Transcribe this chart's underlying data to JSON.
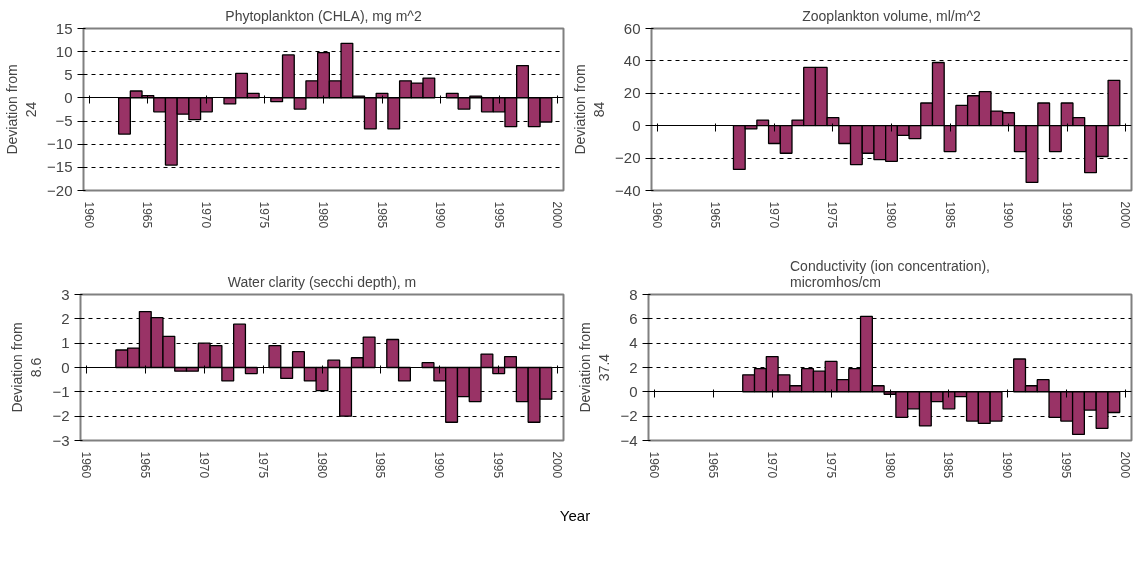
{
  "chart_data": [
    {
      "type": "bar",
      "title": "Phytoplankton (CHLA), mg m^2",
      "ylabel": "Deviation from 24",
      "color": "#993366",
      "grid": "y",
      "xlim": [
        1959.5,
        2000.5
      ],
      "xticks": [
        1960,
        1965,
        1970,
        1975,
        1980,
        1985,
        1990,
        1995,
        2000
      ],
      "ylim": [
        -20,
        15
      ],
      "yticks": [
        -20,
        -15,
        -10,
        -5,
        0,
        5,
        10,
        15
      ],
      "x": [
        1963,
        1964,
        1965,
        1966,
        1967,
        1968,
        1969,
        1970,
        1971,
        1972,
        1973,
        1974,
        1975,
        1976,
        1977,
        1978,
        1979,
        1980,
        1981,
        1982,
        1983,
        1984,
        1985,
        1986,
        1987,
        1988,
        1989,
        1990,
        1991,
        1992,
        1993,
        1994,
        1995,
        1996,
        1997,
        1998,
        1999
      ],
      "values": [
        -7.8,
        1.5,
        0.5,
        -3,
        -14.5,
        -3.5,
        -4.7,
        -3,
        null,
        -1.3,
        5.3,
        1,
        null,
        -0.8,
        9.3,
        -2.4,
        3.7,
        9.8,
        3.7,
        11.8,
        0.4,
        -6.7,
        1,
        -6.7,
        3.7,
        3.2,
        4.3,
        null,
        1,
        -2.4,
        0.4,
        -3,
        -3,
        -6.2,
        7,
        -6.2,
        -5.2
      ]
    },
    {
      "type": "bar",
      "title": "Zooplankton volume, ml/m^2",
      "ylabel": "Deviation from 84",
      "color": "#993366",
      "grid": "y",
      "xlim": [
        1959.5,
        2000.5
      ],
      "xticks": [
        1960,
        1965,
        1970,
        1975,
        1980,
        1985,
        1990,
        1995,
        2000
      ],
      "ylim": [
        -40,
        60
      ],
      "yticks": [
        -40,
        -20,
        0,
        20,
        40,
        60
      ],
      "x": [
        1967,
        1968,
        1969,
        1970,
        1971,
        1972,
        1973,
        1974,
        1975,
        1976,
        1977,
        1978,
        1979,
        1980,
        1981,
        1982,
        1983,
        1984,
        1985,
        1986,
        1987,
        1988,
        1989,
        1990,
        1991,
        1992,
        1993,
        1994,
        1995,
        1996,
        1997,
        1998,
        1999
      ],
      "values": [
        -27,
        -2,
        3.5,
        -11,
        -17,
        3.5,
        36,
        36,
        5,
        -11,
        -24,
        -17,
        -21,
        -22,
        -6,
        -8,
        14,
        39,
        -16,
        12.5,
        18.5,
        21,
        9,
        8,
        -16,
        -35,
        14,
        -16,
        14,
        5,
        -29,
        -19,
        28
      ]
    },
    {
      "type": "bar",
      "title": "Water clarity (secchi depth), m",
      "ylabel": "Deviation from 8.6",
      "color": "#993366",
      "grid": "y",
      "xlim": [
        1959.5,
        2000.5
      ],
      "xticks": [
        1960,
        1965,
        1970,
        1975,
        1980,
        1985,
        1990,
        1995,
        2000
      ],
      "ylim": [
        -3,
        3
      ],
      "yticks": [
        -3,
        -2,
        -1,
        0,
        1,
        2,
        3
      ],
      "x": [
        1963,
        1964,
        1965,
        1966,
        1967,
        1968,
        1969,
        1970,
        1971,
        1972,
        1973,
        1974,
        1975,
        1976,
        1977,
        1978,
        1979,
        1980,
        1981,
        1982,
        1983,
        1984,
        1985,
        1986,
        1987,
        1988,
        1989,
        1990,
        1991,
        1992,
        1993,
        1994,
        1995,
        1996,
        1997,
        1998,
        1999
      ],
      "values": [
        0.72,
        0.8,
        2.3,
        2.05,
        1.28,
        -0.15,
        -0.15,
        1.0,
        0.9,
        -0.55,
        1.78,
        -0.25,
        null,
        0.9,
        -0.45,
        0.65,
        -0.55,
        -0.95,
        0.3,
        -2.0,
        0.4,
        1.25,
        null,
        1.15,
        -0.55,
        null,
        0.2,
        -0.55,
        -2.25,
        -1.2,
        -1.4,
        0.55,
        -0.25,
        0.45,
        -1.4,
        -2.25,
        -1.3
      ]
    },
    {
      "type": "bar",
      "title": "Conductivity (ion concentration), micromhos/cm",
      "ylabel": "Deviation from 37.4",
      "color": "#993366",
      "grid": "y",
      "xlim": [
        1959.5,
        2000.5
      ],
      "xticks": [
        1960,
        1965,
        1970,
        1975,
        1980,
        1985,
        1990,
        1995,
        2000
      ],
      "ylim": [
        -4,
        8
      ],
      "yticks": [
        -4,
        -2,
        0,
        2,
        4,
        6,
        8
      ],
      "x": [
        1968,
        1969,
        1970,
        1971,
        1972,
        1973,
        1974,
        1975,
        1976,
        1977,
        1978,
        1979,
        1980,
        1981,
        1982,
        1983,
        1984,
        1985,
        1986,
        1987,
        1988,
        1989,
        1990,
        1991,
        1992,
        1993,
        1994,
        1995,
        1996,
        1997,
        1998,
        1999
      ],
      "values": [
        1.4,
        1.9,
        2.9,
        1.4,
        0.5,
        1.9,
        1.7,
        2.5,
        1.0,
        1.9,
        6.2,
        0.5,
        -0.2,
        -2.1,
        -1.4,
        -2.8,
        -0.8,
        -1.4,
        -0.4,
        -2.4,
        -2.6,
        -2.4,
        null,
        2.7,
        0.5,
        1.0,
        -2.1,
        -2.4,
        -3.5,
        -1.5,
        -3.0,
        -1.7
      ],
      "annotations": [
        "Year"
      ]
    }
  ]
}
